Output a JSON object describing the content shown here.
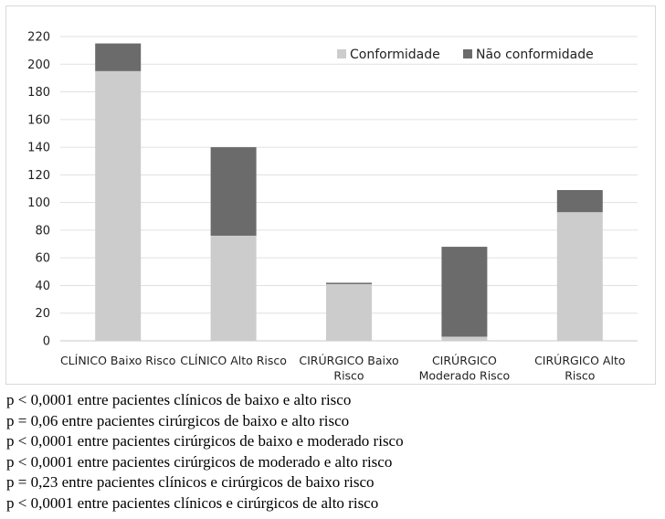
{
  "chart_data": {
    "type": "bar",
    "stacked": true,
    "categories": [
      [
        "CLÍNICO Baixo Risco"
      ],
      [
        "CLÍNICO Alto Risco"
      ],
      [
        "CIRÚRGICO Baixo",
        "Risco"
      ],
      [
        "CIRÚRGICO",
        "Moderado Risco"
      ],
      [
        "CIRÚRGICO Alto",
        "Risco"
      ]
    ],
    "series": [
      {
        "name": "Conformidade",
        "color": "#cccccc",
        "values": [
          195,
          76,
          41,
          3,
          93
        ]
      },
      {
        "name": "Não conformidade",
        "color": "#6b6b6b",
        "values": [
          20,
          64,
          1,
          65,
          16
        ]
      }
    ],
    "ylim": [
      0,
      220
    ],
    "yticks": [
      0,
      20,
      40,
      60,
      80,
      100,
      120,
      140,
      160,
      180,
      200,
      220
    ],
    "grid": true,
    "legend_position": "top-right"
  },
  "notes": [
    "p < 0,0001 entre pacientes clínicos de baixo e alto risco",
    "p = 0,06 entre pacientes cirúrgicos de baixo e alto risco",
    "p < 0,0001 entre pacientes cirúrgicos de baixo e moderado risco",
    "p < 0,0001 entre pacientes cirúrgicos de moderado e alto risco",
    "p = 0,23 entre pacientes clínicos e cirúrgicos de baixo risco",
    "p < 0,0001 entre pacientes clínicos e cirúrgicos de alto risco"
  ]
}
